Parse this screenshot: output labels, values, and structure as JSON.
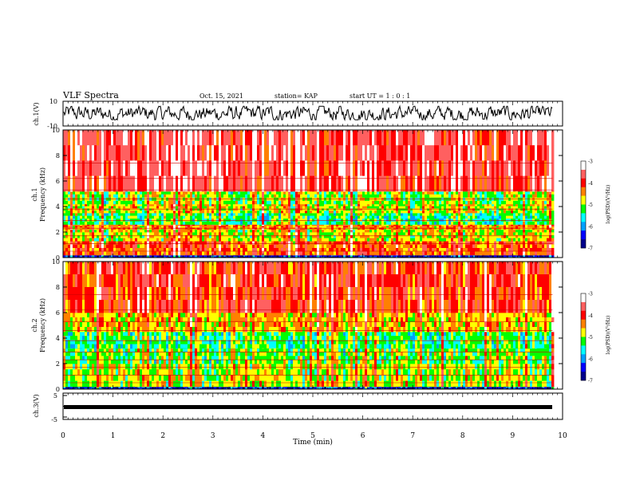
{
  "header": {
    "title": "VLF Spectra",
    "date": "Oct. 15, 2021",
    "station": "station= KAP",
    "start_ut": "start  UT =  1 : 0  : 1"
  },
  "colors": {
    "scale": [
      "#00008b",
      "#0000ff",
      "#00a0ff",
      "#00ffff",
      "#00ff00",
      "#ffff00",
      "#ff8000",
      "#ff0000",
      "#ff6060",
      "#ffffff"
    ]
  },
  "chart_data": [
    {
      "type": "line",
      "panel": "ch1-waveform",
      "ylabel": "ch.1(V)",
      "ylim": [
        -10,
        10
      ],
      "y_ticks": [
        "10",
        "-10"
      ],
      "xlim": [
        0,
        10
      ],
      "description_values": {
        "typical_range": [
          -5,
          6
        ]
      }
    },
    {
      "type": "heatmap",
      "panel": "ch1-spectrogram",
      "ylabel_line1": "ch.1",
      "ylabel_line2": "Frequency  (kHz)",
      "ylim": [
        0,
        10
      ],
      "y_ticks": [
        "0",
        "2",
        "4",
        "6",
        "8",
        "10"
      ],
      "xlim": [
        0,
        9.8
      ],
      "colorbar": {
        "label": "log(PSD)(V²/Hz)",
        "ticks": [
          "-3",
          "-4",
          "-5",
          "-6",
          "-7"
        ],
        "range": [
          -7,
          -3
        ]
      },
      "bands": [
        {
          "f": [
            0,
            0.2
          ],
          "level": -6.5
        },
        {
          "f": [
            0.2,
            1.3
          ],
          "level": -4.2
        },
        {
          "f": [
            1.3,
            2.2
          ],
          "level": -4.8
        },
        {
          "f": [
            2.2,
            2.6
          ],
          "level": -4.4
        },
        {
          "f": [
            2.6,
            3.5
          ],
          "level": -5.3
        },
        {
          "f": [
            3.5,
            4.2
          ],
          "level": -4.8
        },
        {
          "f": [
            4.2,
            5.2
          ],
          "level": -5.0
        },
        {
          "f": [
            5.2,
            10
          ],
          "level": -3.7
        }
      ]
    },
    {
      "type": "heatmap",
      "panel": "ch2-spectrogram",
      "ylabel_line1": "ch.2",
      "ylabel_line2": "Frequency  (kHz)",
      "ylim": [
        0,
        10
      ],
      "y_ticks": [
        "0",
        "2",
        "4",
        "6",
        "8",
        "10"
      ],
      "xlim": [
        0,
        9.8
      ],
      "colorbar": {
        "label": "log(PSD)(V²/Hz)",
        "ticks": [
          "-3",
          "-4",
          "-5",
          "-6",
          "-7"
        ],
        "range": [
          -7,
          -3
        ]
      },
      "bands": [
        {
          "f": [
            0,
            0.2
          ],
          "level": -6.5
        },
        {
          "f": [
            0.2,
            2.0
          ],
          "level": -4.9
        },
        {
          "f": [
            2.0,
            3.2
          ],
          "level": -5.1
        },
        {
          "f": [
            3.2,
            4.5
          ],
          "level": -5.3
        },
        {
          "f": [
            4.5,
            6.0
          ],
          "level": -4.6
        },
        {
          "f": [
            6.0,
            10
          ],
          "level": -4.0
        }
      ]
    },
    {
      "type": "line",
      "panel": "ch3-waveform",
      "ylabel": "ch.3(V)",
      "ylim": [
        -5,
        5
      ],
      "y_ticks": [
        "5",
        "0",
        "-5"
      ],
      "xlim": [
        0,
        10
      ],
      "description_values": {
        "typical_range": [
          -0.5,
          0.5
        ]
      }
    }
  ],
  "x_axis": {
    "label": "Time  (min)",
    "ticks": [
      "0",
      "1",
      "2",
      "3",
      "4",
      "5",
      "6",
      "7",
      "8",
      "9",
      "10"
    ],
    "range": [
      0,
      10
    ]
  }
}
